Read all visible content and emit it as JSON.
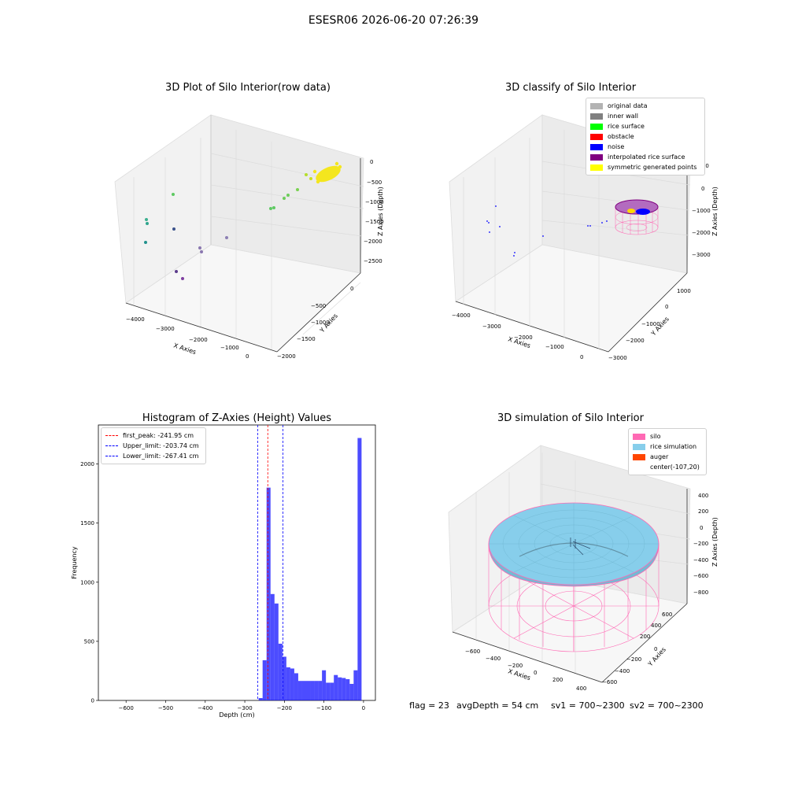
{
  "suptitle": "ESESR06 2026-06-20 07:26:39",
  "panels": {
    "raw": {
      "title": "3D Plot of Silo Interior(row data)",
      "xlabel": "X Axies",
      "ylabel": "Y Axies",
      "zlabel": "Z Axies (Depth)",
      "xticks": [
        "−4000",
        "−3000",
        "−2000",
        "−1000",
        "0"
      ],
      "yticks": [
        "0",
        "−500",
        "−1000",
        "−1500",
        "−2000"
      ],
      "zticks": [
        "0",
        "−500",
        "−1000",
        "−1500",
        "−2000",
        "−2500"
      ]
    },
    "classify": {
      "title": "3D classify of Silo Interior",
      "xlabel": "X Axies",
      "ylabel": "Y Axies",
      "zlabel": "Z Axies (Depth)",
      "xticks": [
        "−4000",
        "−3000",
        "−2000",
        "−1000",
        "0"
      ],
      "yticks": [
        "1000",
        "0",
        "−1000",
        "−2000",
        "−3000"
      ],
      "zticks": [
        "1000",
        "0",
        "−1000",
        "−2000",
        "−3000"
      ],
      "legend": [
        {
          "label": "original data",
          "color": "#b3b3b3"
        },
        {
          "label": "inner wall",
          "color": "#808080"
        },
        {
          "label": "rice surface",
          "color": "#00ff00"
        },
        {
          "label": "obstacle",
          "color": "#ff0000"
        },
        {
          "label": "noise",
          "color": "#0000ff"
        },
        {
          "label": "interpolated rice surface",
          "color": "#800080"
        },
        {
          "label": "symmetric generated points",
          "color": "#ffff00"
        }
      ]
    },
    "simulation": {
      "title": "3D simulation of Silo Interior",
      "xlabel": "X Axies",
      "ylabel": "Y Axies",
      "zlabel": "Z Axies (Depth)",
      "xticks": [
        "−600",
        "−400",
        "−200",
        "0",
        "200",
        "400"
      ],
      "yticks": [
        "600",
        "400",
        "200",
        "0",
        "−200",
        "−400",
        "−600"
      ],
      "zticks": [
        "400",
        "200",
        "0",
        "−200",
        "−400",
        "−600",
        "−800"
      ],
      "legend": [
        {
          "label": "silo",
          "color": "#ff69b4"
        },
        {
          "label": "rice simulation",
          "color": "#87ceeb"
        },
        {
          "label": "auger",
          "color": "#ff4500"
        },
        {
          "label": "center(-107,20)",
          "color": ""
        }
      ]
    }
  },
  "footer": {
    "flag": "flag = 23",
    "avg_depth": "avgDepth = 54 cm",
    "sv1": "sv1 = 700~2300",
    "sv2": "sv2 = 700~2300"
  },
  "chart_data": {
    "type": "bar",
    "title": "Histogram of Z-Axies (Height) Values",
    "xlabel": "Depth (cm)",
    "ylabel": "Frequency",
    "xlim": [
      -670,
      30
    ],
    "ylim": [
      0,
      2330
    ],
    "xticks": [
      -600,
      -500,
      -400,
      -300,
      -200,
      -100,
      0
    ],
    "yticks": [
      0,
      500,
      1000,
      1500,
      2000
    ],
    "bar_color": "#0000ff",
    "bin_width": 10,
    "bins": [
      {
        "x0": -265,
        "value": 20
      },
      {
        "x0": -255,
        "value": 340
      },
      {
        "x0": -245,
        "value": 1800
      },
      {
        "x0": -235,
        "value": 900
      },
      {
        "x0": -225,
        "value": 820
      },
      {
        "x0": -215,
        "value": 480
      },
      {
        "x0": -205,
        "value": 370
      },
      {
        "x0": -195,
        "value": 280
      },
      {
        "x0": -185,
        "value": 270
      },
      {
        "x0": -175,
        "value": 230
      },
      {
        "x0": -165,
        "value": 165
      },
      {
        "x0": -155,
        "value": 165
      },
      {
        "x0": -145,
        "value": 165
      },
      {
        "x0": -135,
        "value": 165
      },
      {
        "x0": -125,
        "value": 165
      },
      {
        "x0": -115,
        "value": 165
      },
      {
        "x0": -105,
        "value": 255
      },
      {
        "x0": -95,
        "value": 150
      },
      {
        "x0": -85,
        "value": 150
      },
      {
        "x0": -75,
        "value": 215
      },
      {
        "x0": -65,
        "value": 195
      },
      {
        "x0": -55,
        "value": 190
      },
      {
        "x0": -45,
        "value": 180
      },
      {
        "x0": -35,
        "value": 140
      },
      {
        "x0": -25,
        "value": 255
      },
      {
        "x0": -15,
        "value": 2220
      }
    ],
    "vlines": [
      {
        "label": "first_peak: -241.95 cm",
        "x": -241.95,
        "color": "#ff0000"
      },
      {
        "label": "Upper_limit: -203.74 cm",
        "x": -203.74,
        "color": "#0000ff"
      },
      {
        "label": "Lower_limit: -267.41 cm",
        "x": -267.41,
        "color": "#0000ff"
      }
    ],
    "legend_position": "upper-left"
  }
}
